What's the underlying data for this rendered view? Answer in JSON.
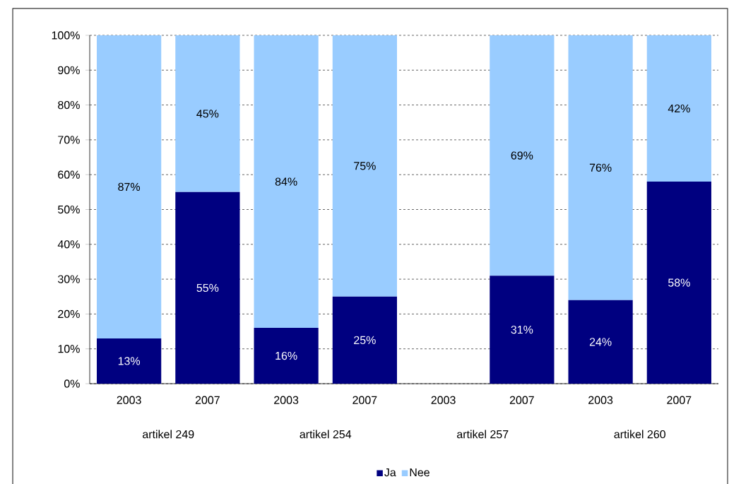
{
  "chart_data": {
    "type": "bar",
    "stacked": true,
    "categories": [
      "2003",
      "2007",
      "2003",
      "2007",
      "2003",
      "2007",
      "2003",
      "2007"
    ],
    "annotations": [
      "artikel 249",
      "artikel 254",
      "artikel 257",
      "artikel 260"
    ],
    "series": [
      {
        "name": "Ja",
        "color": "#000080",
        "values": [
          13,
          55,
          16,
          25,
          null,
          31,
          24,
          58
        ],
        "value_labels": [
          "13%",
          "55%",
          "16%",
          "25%",
          null,
          "31%",
          "24%",
          "58%"
        ]
      },
      {
        "name": "Nee",
        "color": "#99ccff",
        "values": [
          87,
          45,
          84,
          75,
          null,
          69,
          76,
          42
        ],
        "value_labels": [
          "87%",
          "45%",
          "84%",
          "75%",
          null,
          "69%",
          "76%",
          "42%"
        ]
      }
    ],
    "ylim": [
      0,
      100
    ],
    "yticks": [
      {
        "value": 0,
        "label": "0%"
      },
      {
        "value": 10,
        "label": "10%"
      },
      {
        "value": 20,
        "label": "20%"
      },
      {
        "value": 30,
        "label": "30%"
      },
      {
        "value": 40,
        "label": "40%"
      },
      {
        "value": 50,
        "label": "50%"
      },
      {
        "value": 60,
        "label": "60%"
      },
      {
        "value": 70,
        "label": "70%"
      },
      {
        "value": 80,
        "label": "80%"
      },
      {
        "value": 90,
        "label": "90%"
      },
      {
        "value": 100,
        "label": "100%"
      }
    ],
    "grid": "y",
    "legend": "bottom"
  }
}
